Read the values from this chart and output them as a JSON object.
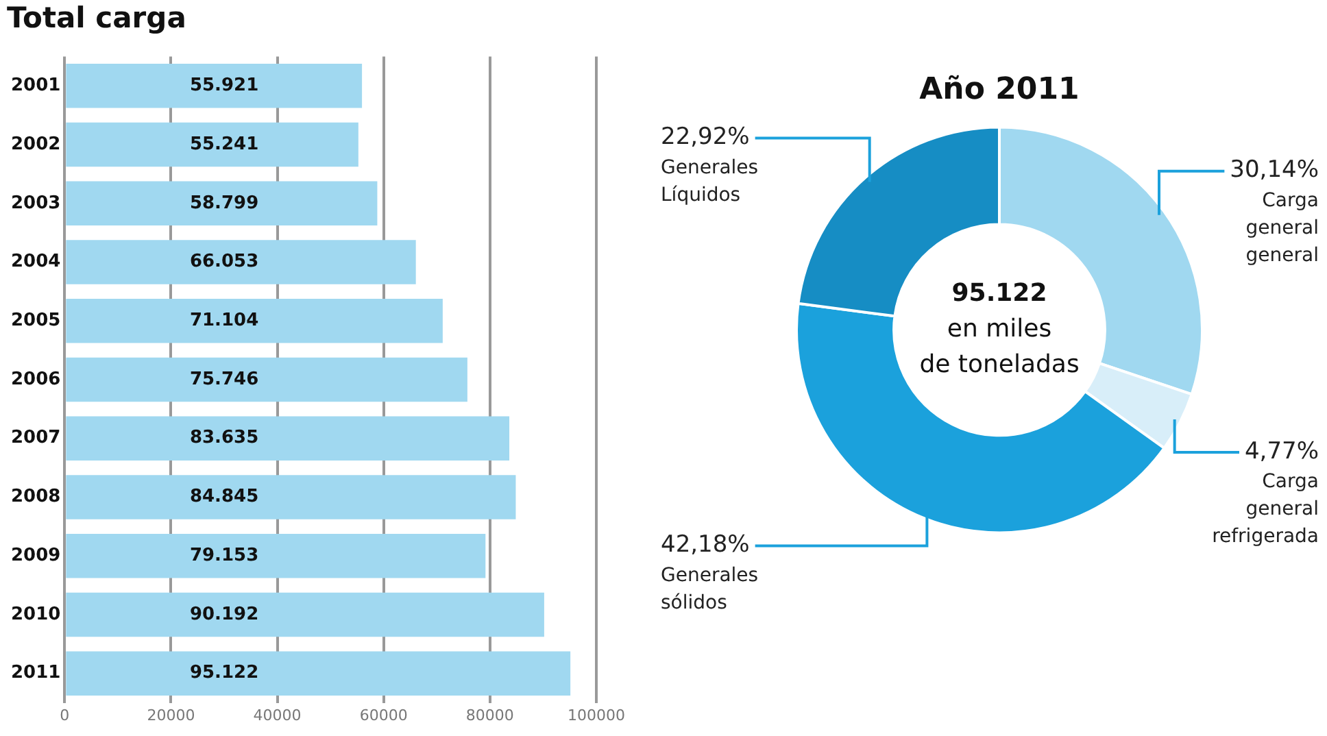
{
  "chart_data": [
    {
      "type": "bar",
      "title": "Total carga",
      "orientation": "horizontal",
      "categories": [
        "2001",
        "2002",
        "2003",
        "2004",
        "2005",
        "2006",
        "2007",
        "2008",
        "2009",
        "2010",
        "2011"
      ],
      "values": [
        55921,
        55241,
        58799,
        66053,
        71104,
        75746,
        83635,
        84845,
        79153,
        90192,
        95122
      ],
      "value_labels": [
        "55.921",
        "55.241",
        "58.799",
        "66.053",
        "71.104",
        "75.746",
        "83.635",
        "84.845",
        "79.153",
        "90.192",
        "95.122"
      ],
      "color": "#a0d8f0",
      "xlim": [
        0,
        100000
      ],
      "xticks": [
        0,
        20000,
        40000,
        60000,
        80000,
        100000
      ],
      "grid": "x",
      "legend": false
    },
    {
      "type": "donut",
      "title": "Año 2011",
      "categories": [
        "Carga general general",
        "Carga general refrigerada",
        "Generales sólidos",
        "Generales Líquidos"
      ],
      "values": [
        30.14,
        4.77,
        42.18,
        22.92
      ],
      "value_labels": [
        "30,14%",
        "4,77%",
        "42,18%",
        "22,92%"
      ],
      "colors": [
        "#a0d8f0",
        "#d8eef9",
        "#1ba1dc",
        "#168dc4"
      ],
      "annotations": [
        "95.122",
        "en miles de toneladas"
      ],
      "legend": false
    }
  ]
}
